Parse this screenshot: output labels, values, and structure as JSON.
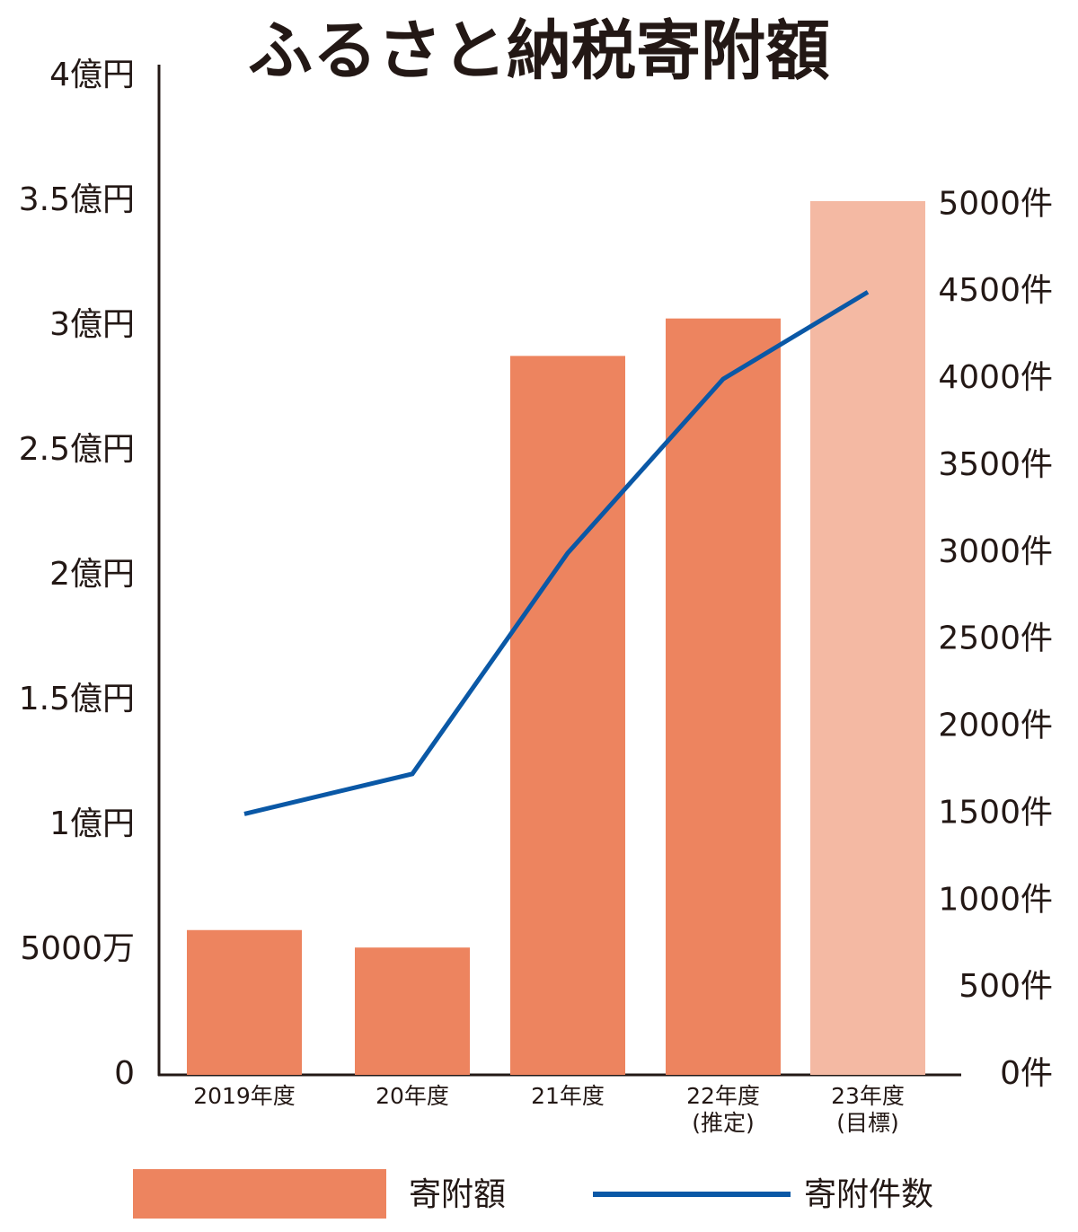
{
  "chart_data": {
    "type": "bar",
    "title": "ふるさと納税寄附額",
    "categories": [
      "2019年度",
      "20年度",
      "21年度",
      "22年度\n(推定)",
      "23年度\n(目標)"
    ],
    "series": [
      {
        "name": "寄附額",
        "type": "bar",
        "color": "#ed845f",
        "colors": [
          "#ed845f",
          "#ed845f",
          "#ed845f",
          "#ed845f",
          "#f4b9a3"
        ],
        "values": [
          0.58,
          0.51,
          2.88,
          3.03,
          3.5
        ]
      },
      {
        "name": "寄附件数",
        "type": "line",
        "axis": "y2",
        "color": "#0a58a6",
        "values": [
          1500,
          1730,
          3000,
          4000,
          4500
        ]
      }
    ],
    "ylim": [
      0,
      4
    ],
    "yticks": [
      0,
      {
        "value": 0.5,
        "label": "5000万"
      },
      {
        "value": 1,
        "label": "1億円"
      },
      {
        "value": 1.5,
        "label": "1.5億円"
      },
      {
        "value": 2,
        "label": "2億円"
      },
      {
        "value": 2.5,
        "label": "2.5億円"
      },
      {
        "value": 3,
        "label": "3億円"
      },
      {
        "value": 3.5,
        "label": "3.5億円"
      },
      {
        "value": 4,
        "label": "4億円"
      }
    ],
    "y2lim": [
      0,
      5740
    ],
    "y2ticks": [
      {
        "value": 0,
        "label": "0件"
      },
      {
        "value": 500,
        "label": "500件"
      },
      {
        "value": 1000,
        "label": "1000件"
      },
      {
        "value": 1500,
        "label": "1500件"
      },
      {
        "value": 2000,
        "label": "2000件"
      },
      {
        "value": 2500,
        "label": "2500件"
      },
      {
        "value": 3000,
        "label": "3000件"
      },
      {
        "value": 3500,
        "label": "3500件"
      },
      {
        "value": 4000,
        "label": "4000件"
      },
      {
        "value": 4500,
        "label": "4500件"
      },
      {
        "value": 5000,
        "label": "5000件"
      }
    ],
    "grid": false
  }
}
